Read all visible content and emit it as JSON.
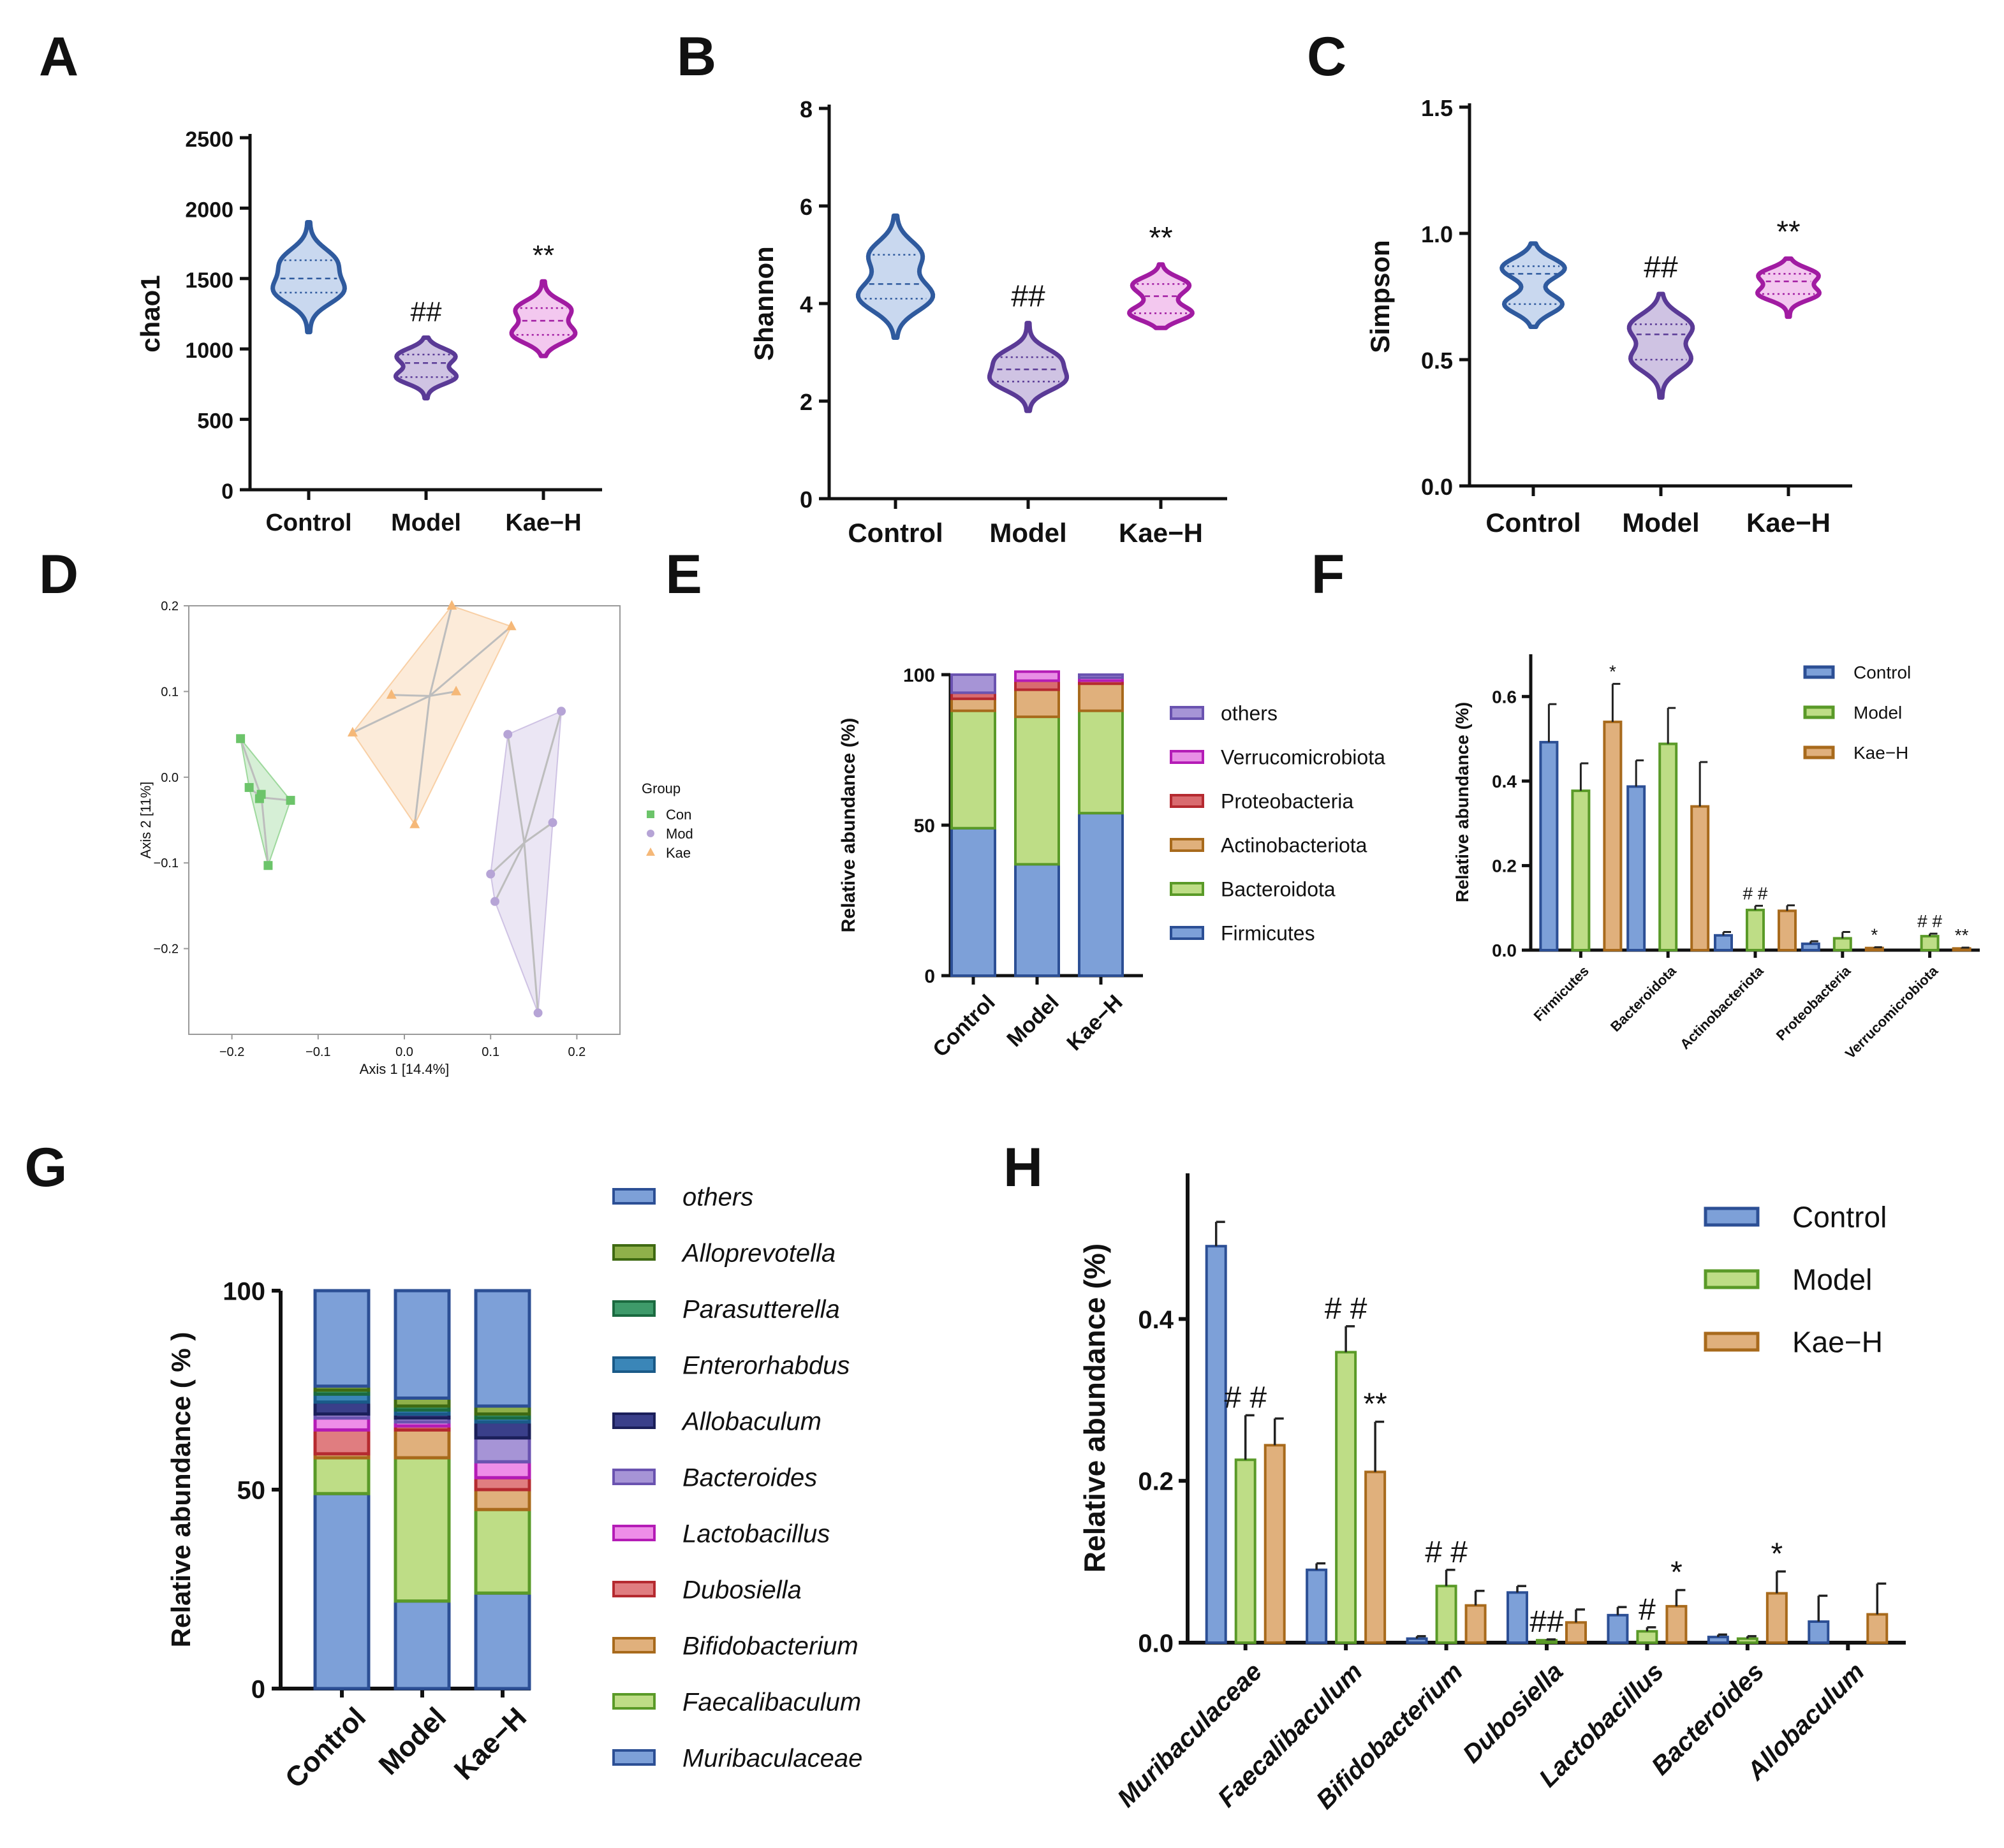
{
  "colors": {
    "control": "#7da0d8",
    "control_edge": "#2c4f95",
    "model": "#bedd86",
    "model_edge": "#5a9a28",
    "kae": "#e0b07c",
    "kae_edge": "#a86a1c",
    "violin_control_fill": "#c9d8ef",
    "violin_control_edge": "#2f5a9e",
    "violin_model_fill": "#cfc3e3",
    "violin_model_edge": "#5a3a96",
    "violin_kae_fill": "#f3c8ef",
    "violin_kae_edge": "#a11ba2",
    "pcoa_con": "#6cc46a",
    "pcoa_mod": "#b6a4d6",
    "pcoa_kae": "#f5b878",
    "phylum_others": "#a694d6",
    "phylum_verruco": "#e88ee5",
    "phylum_proteo": "#d96b6f",
    "phylum_actino": "#e0b07c",
    "phylum_bactero": "#bedd86",
    "phylum_firmi": "#7da0d8",
    "genus_others": "#7da0d8",
    "genus_allopre": "#8fb04a",
    "genus_parasu": "#3e9a6a",
    "genus_entero": "#3a86b8",
    "genus_allobac": "#3a3f8a",
    "genus_bactero": "#a694d6",
    "genus_lacto": "#ee8ee8",
    "genus_dubo": "#e07d80",
    "genus_bifido": "#e0b07c",
    "genus_faecal": "#bedd86",
    "genus_muri": "#7da0d8"
  },
  "panel_labels": [
    "A",
    "B",
    "C",
    "D",
    "E",
    "F",
    "G",
    "H"
  ],
  "chart_data": [
    {
      "id": "A",
      "type": "violin",
      "title": "",
      "ylabel": "chao1",
      "ylim": [
        0,
        2500
      ],
      "yticks": [
        "0",
        "500",
        "1000",
        "1500",
        "2000",
        "2500"
      ],
      "categories": [
        "Control",
        "Model",
        "Kae−H"
      ],
      "series": [
        {
          "name": "Control",
          "min": 1120,
          "max": 1900,
          "median": 1500,
          "q1": 1400,
          "q3": 1630
        },
        {
          "name": "Model",
          "min": 650,
          "max": 1080,
          "median": 900,
          "q1": 800,
          "q3": 960
        },
        {
          "name": "Kae−H",
          "min": 950,
          "max": 1480,
          "median": 1200,
          "q1": 1100,
          "q3": 1290
        }
      ],
      "annotations": [
        {
          "category": "Model",
          "text": "##"
        },
        {
          "category": "Kae−H",
          "text": "**"
        }
      ]
    },
    {
      "id": "B",
      "type": "violin",
      "title": "",
      "ylabel": "Shannon",
      "ylim": [
        0,
        8
      ],
      "yticks": [
        "0",
        "2",
        "4",
        "6",
        "8"
      ],
      "categories": [
        "Control",
        "Model",
        "Kae−H"
      ],
      "series": [
        {
          "name": "Control",
          "min": 3.3,
          "max": 5.8,
          "median": 4.4,
          "q1": 4.1,
          "q3": 5.0
        },
        {
          "name": "Model",
          "min": 1.8,
          "max": 3.6,
          "median": 2.65,
          "q1": 2.4,
          "q3": 2.9
        },
        {
          "name": "Kae−H",
          "min": 3.5,
          "max": 4.8,
          "median": 4.15,
          "q1": 3.8,
          "q3": 4.4
        }
      ],
      "annotations": [
        {
          "category": "Model",
          "text": "##"
        },
        {
          "category": "Kae−H",
          "text": "**"
        }
      ]
    },
    {
      "id": "C",
      "type": "violin",
      "title": "",
      "ylabel": "Simpson",
      "ylim": [
        0,
        1.5
      ],
      "yticks": [
        "0.0",
        "0.5",
        "1.0",
        "1.5"
      ],
      "categories": [
        "Control",
        "Model",
        "Kae−H"
      ],
      "series": [
        {
          "name": "Control",
          "min": 0.63,
          "max": 0.96,
          "median": 0.84,
          "q1": 0.72,
          "q3": 0.87
        },
        {
          "name": "Model",
          "min": 0.35,
          "max": 0.76,
          "median": 0.6,
          "q1": 0.5,
          "q3": 0.64
        },
        {
          "name": "Kae−H",
          "min": 0.67,
          "max": 0.9,
          "median": 0.81,
          "q1": 0.76,
          "q3": 0.84
        }
      ],
      "annotations": [
        {
          "category": "Model",
          "text": "##"
        },
        {
          "category": "Kae−H",
          "text": "**"
        }
      ]
    },
    {
      "id": "D",
      "type": "scatter",
      "title": "",
      "xlabel": "Axis 1 [14.4%]",
      "ylabel": "Axis 2 [11%]",
      "xlim": [
        -0.25,
        0.25
      ],
      "ylim": [
        -0.3,
        0.2
      ],
      "xticks": [
        "−0.2",
        "−0.1",
        "0.0",
        "0.1",
        "0.2"
      ],
      "yticks": [
        "−0.2",
        "−0.1",
        "0.0",
        "0.1",
        "0.2"
      ],
      "legend_title": "Group",
      "series": [
        {
          "name": "Con",
          "marker": "square",
          "points": [
            [
              -0.19,
              0.045
            ],
            [
              -0.18,
              -0.012
            ],
            [
              -0.168,
              -0.025
            ],
            [
              -0.132,
              -0.027
            ],
            [
              -0.158,
              -0.103
            ],
            [
              -0.166,
              -0.02
            ]
          ]
        },
        {
          "name": "Mod",
          "marker": "circle",
          "points": [
            [
              0.12,
              0.05
            ],
            [
              0.182,
              0.077
            ],
            [
              0.172,
              -0.053
            ],
            [
              0.1,
              -0.113
            ],
            [
              0.105,
              -0.145
            ],
            [
              0.155,
              -0.275
            ]
          ]
        },
        {
          "name": "Kae",
          "marker": "triangle",
          "points": [
            [
              0.055,
              0.2
            ],
            [
              0.124,
              0.176
            ],
            [
              -0.06,
              0.052
            ],
            [
              -0.015,
              0.096
            ],
            [
              0.06,
              0.1
            ],
            [
              0.012,
              -0.055
            ]
          ]
        }
      ]
    },
    {
      "id": "E",
      "type": "bar",
      "stacked": true,
      "ylabel": "Relative abundance (%)",
      "ylim": [
        0,
        100
      ],
      "yticks": [
        "0",
        "50",
        "100"
      ],
      "categories": [
        "Control",
        "Model",
        "Kae−H"
      ],
      "series": [
        {
          "name": "Firmicutes",
          "values": [
            49,
            37,
            54
          ]
        },
        {
          "name": "Bacteroidota",
          "values": [
            39,
            49,
            34
          ]
        },
        {
          "name": "Actinobacteriota",
          "values": [
            4,
            9,
            9
          ]
        },
        {
          "name": "Proteobacteria",
          "values": [
            2,
            3,
            1
          ]
        },
        {
          "name": "Verrucomicrobiota",
          "values": [
            0,
            3,
            1
          ]
        },
        {
          "name": "others",
          "values": [
            6,
            0,
            1
          ]
        }
      ],
      "legend_order": [
        "others",
        "Verrucomicrobiota",
        "Proteobacteria",
        "Actinobacteriota",
        "Bacteroidota",
        "Firmicutes"
      ]
    },
    {
      "id": "F",
      "type": "bar",
      "ylabel": "Relative abundance (%)",
      "ylim": [
        0,
        0.7
      ],
      "yticks": [
        "0.0",
        "0.2",
        "0.4",
        "0.6"
      ],
      "categories": [
        "Firmicutes",
        "Bacteroidota",
        "Actinobacteriota",
        "Proteobacteria",
        "Verrucomicrobiota"
      ],
      "series": [
        {
          "name": "Control",
          "values": [
            0.492,
            0.387,
            0.035,
            0.015,
            0.0
          ],
          "errors": [
            0.09,
            0.062,
            0.008,
            0.006,
            0.0
          ]
        },
        {
          "name": "Model",
          "values": [
            0.377,
            0.488,
            0.095,
            0.028,
            0.033
          ],
          "errors": [
            0.065,
            0.085,
            0.01,
            0.015,
            0.006
          ]
        },
        {
          "name": "Kae−H",
          "values": [
            0.54,
            0.34,
            0.093,
            0.005,
            0.004
          ],
          "errors": [
            0.09,
            0.105,
            0.013,
            0.002,
            0.002
          ]
        }
      ],
      "annotations": [
        {
          "category": "Firmicutes",
          "series": "Kae−H",
          "text": "*"
        },
        {
          "category": "Actinobacteriota",
          "series": "Model",
          "text": "# #"
        },
        {
          "category": "Proteobacteria",
          "series": "Kae−H",
          "text": "*"
        },
        {
          "category": "Verrucomicrobiota",
          "series": "Model",
          "text": "# #"
        },
        {
          "category": "Verrucomicrobiota",
          "series": "Kae−H",
          "text": "**"
        }
      ]
    },
    {
      "id": "G",
      "type": "bar",
      "stacked": true,
      "ylabel": "Relative abundance ( % )",
      "ylim": [
        0,
        100
      ],
      "yticks": [
        "0",
        "50",
        "100"
      ],
      "categories": [
        "Control",
        "Model",
        "Kae−H"
      ],
      "series": [
        {
          "name": "Muribaculaceae",
          "values": [
            49,
            22,
            24
          ]
        },
        {
          "name": "Faecalibaculum",
          "values": [
            9,
            36,
            21
          ]
        },
        {
          "name": "Bifidobacterium",
          "values": [
            1,
            7,
            5
          ]
        },
        {
          "name": "Dubosiella",
          "values": [
            6,
            1,
            3
          ]
        },
        {
          "name": "Lactobacillus",
          "values": [
            3,
            1,
            4
          ]
        },
        {
          "name": "Bacteroides",
          "values": [
            1,
            1,
            6
          ]
        },
        {
          "name": "Allobaculum",
          "values": [
            3,
            1,
            4
          ]
        },
        {
          "name": "Enterorhabdus",
          "values": [
            2,
            1,
            1
          ]
        },
        {
          "name": "Parasutterella",
          "values": [
            1,
            1,
            1
          ]
        },
        {
          "name": "Alloprevotella",
          "values": [
            1,
            2,
            2
          ]
        },
        {
          "name": "others",
          "values": [
            24,
            27,
            29
          ]
        }
      ],
      "legend_order": [
        "others",
        "Alloprevotella",
        "Parasutterella",
        "Enterorhabdus",
        "Allobaculum",
        "Bacteroides",
        "Lactobacillus",
        "Dubosiella",
        "Bifidobacterium",
        "Faecalibaculum",
        "Muribaculaceae"
      ]
    },
    {
      "id": "H",
      "type": "bar",
      "ylabel": "Relative abundance (%)",
      "ylim": [
        0,
        0.58
      ],
      "yticks": [
        "0.0",
        "0.2",
        "0.4"
      ],
      "categories": [
        "Muribaculaceae",
        "Faecalibaculum",
        "Bifidobacterium",
        "Dubosiella",
        "Lactobacillus",
        "Bacteroides",
        "Allobaculum"
      ],
      "series": [
        {
          "name": "Control",
          "values": [
            0.49,
            0.09,
            0.005,
            0.062,
            0.034,
            0.007,
            0.026
          ],
          "errors": [
            0.03,
            0.008,
            0.003,
            0.008,
            0.01,
            0.003,
            0.032
          ]
        },
        {
          "name": "Model",
          "values": [
            0.226,
            0.359,
            0.07,
            0.003,
            0.014,
            0.005,
            0.0
          ],
          "errors": [
            0.055,
            0.032,
            0.02,
            0.001,
            0.005,
            0.003,
            0.0
          ]
        },
        {
          "name": "Kae−H",
          "values": [
            0.244,
            0.211,
            0.046,
            0.025,
            0.045,
            0.061,
            0.035
          ],
          "errors": [
            0.033,
            0.062,
            0.018,
            0.016,
            0.02,
            0.027,
            0.038
          ]
        }
      ],
      "annotations": [
        {
          "category": "Muribaculaceae",
          "series": "Model",
          "text": "# #"
        },
        {
          "category": "Faecalibaculum",
          "series": "Model",
          "text": "# #"
        },
        {
          "category": "Faecalibaculum",
          "series": "Kae−H",
          "text": "**"
        },
        {
          "category": "Bifidobacterium",
          "series": "Model",
          "text": "# #"
        },
        {
          "category": "Dubosiella",
          "series": "Model",
          "text": "##"
        },
        {
          "category": "Lactobacillus",
          "series": "Model",
          "text": "#"
        },
        {
          "category": "Lactobacillus",
          "series": "Kae−H",
          "text": "*"
        },
        {
          "category": "Bacteroides",
          "series": "Kae−H",
          "text": "*"
        }
      ]
    }
  ]
}
